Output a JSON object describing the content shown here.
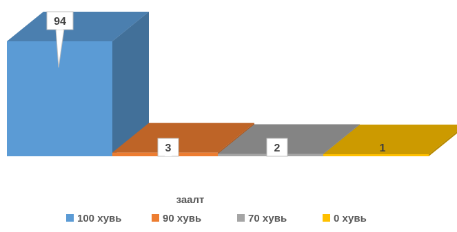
{
  "chart_data": {
    "type": "bar",
    "three_d": true,
    "categories": [
      "заалт"
    ],
    "xlabel": "заалт",
    "series": [
      {
        "name": "100 хувь",
        "values": [
          94
        ],
        "color": "#5B9BD5"
      },
      {
        "name": "90 хувь",
        "values": [
          3
        ],
        "color": "#ED7D31"
      },
      {
        "name": "70 хувь",
        "values": [
          2
        ],
        "color": "#A5A5A5"
      },
      {
        "name": "0 хувь",
        "values": [
          1
        ],
        "color": "#FFC000"
      }
    ],
    "ylim": [
      0,
      94
    ],
    "data_labels": true,
    "grid": false,
    "legend_position": "bottom"
  }
}
